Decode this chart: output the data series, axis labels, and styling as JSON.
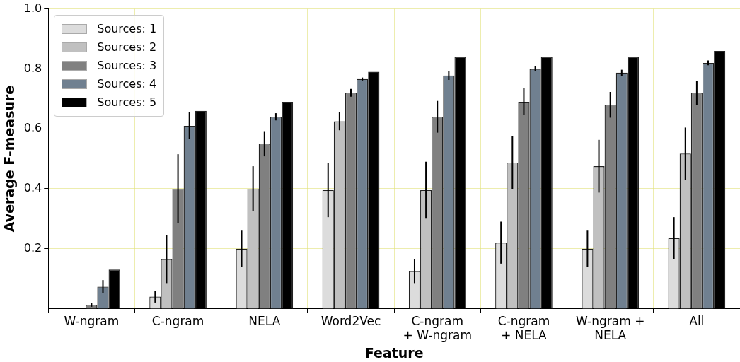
{
  "chart_data": {
    "type": "bar",
    "xlabel": "Feature",
    "ylabel": "Average F-measure",
    "categories": [
      "W-ngram",
      "C-ngram",
      "NELA",
      "Word2Vec",
      "C-ngram\n+ W-ngram",
      "C-ngram\n+ NELA",
      "W-ngram +\nNELA",
      "All"
    ],
    "series": [
      {
        "name": "Sources: 1",
        "color": "#dcdcdc",
        "values": [
          null,
          0.04,
          0.2,
          0.395,
          0.125,
          0.22,
          0.2,
          0.235
        ],
        "errors": [
          null,
          0.02,
          0.06,
          0.09,
          0.04,
          0.07,
          0.06,
          0.07
        ]
      },
      {
        "name": "Sources: 2",
        "color": "#c0c0c0",
        "values": [
          null,
          0.165,
          0.4,
          0.625,
          0.395,
          0.487,
          0.475,
          0.517
        ],
        "errors": [
          null,
          0.08,
          0.075,
          0.03,
          0.095,
          0.088,
          0.088,
          0.087
        ]
      },
      {
        "name": "Sources: 3",
        "color": "#808080",
        "values": [
          0.012,
          0.4,
          0.55,
          0.72,
          0.64,
          0.69,
          0.68,
          0.72
        ],
        "errors": [
          0.006,
          0.115,
          0.042,
          0.013,
          0.053,
          0.045,
          0.043,
          0.04
        ]
      },
      {
        "name": "Sources: 4",
        "color": "#708090",
        "values": [
          0.073,
          0.61,
          0.64,
          0.766,
          0.778,
          0.8,
          0.787,
          0.82
        ],
        "errors": [
          0.022,
          0.045,
          0.012,
          0.005,
          0.015,
          0.008,
          0.01,
          0.008
        ]
      },
      {
        "name": "Sources: 5",
        "color": "#000000",
        "values": [
          0.13,
          0.66,
          0.69,
          0.79,
          0.84,
          0.84,
          0.84,
          0.86
        ]
      }
    ],
    "ylim": [
      0,
      1
    ],
    "yticks": [
      0.2,
      0.4,
      0.6,
      0.8,
      {
        "value": 1,
        "label": "1.0"
      }
    ],
    "grid": true,
    "legend": "top left"
  }
}
